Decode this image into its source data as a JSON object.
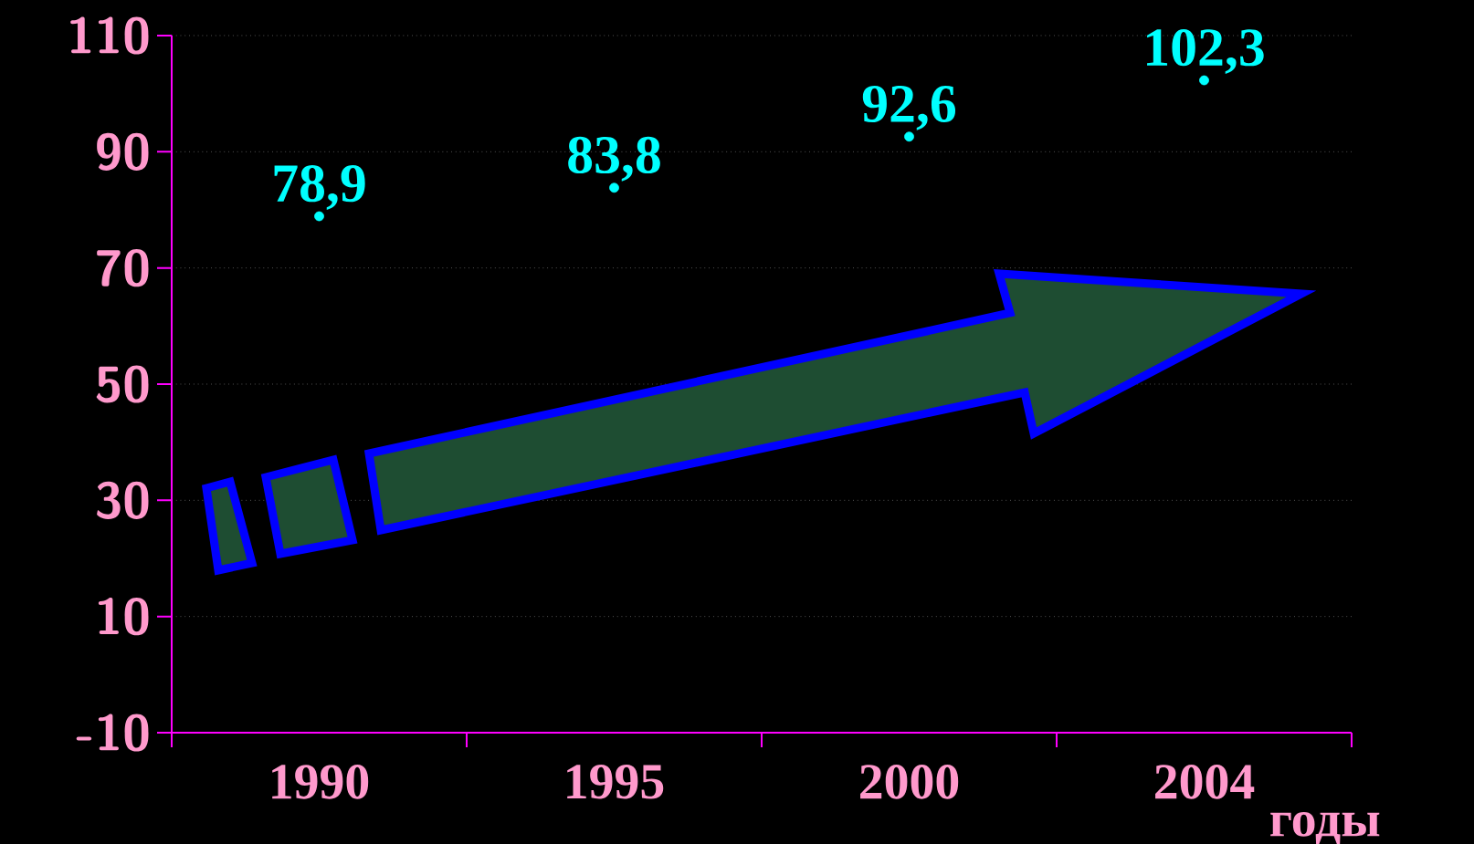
{
  "chart_data": {
    "type": "scatter",
    "marker": "circle",
    "xlabel": "годы",
    "categories": [
      "1990",
      "1995",
      "2000",
      "2004"
    ],
    "values": [
      78.9,
      83.8,
      92.6,
      102.3
    ],
    "value_labels": [
      "78,9",
      "83,8",
      "92,6",
      "102,3"
    ],
    "color": "#00ffff",
    "ylim": [
      -10,
      110
    ],
    "yticks": [
      -10,
      10,
      30,
      50,
      70,
      90,
      110
    ],
    "grid": "y"
  }
}
